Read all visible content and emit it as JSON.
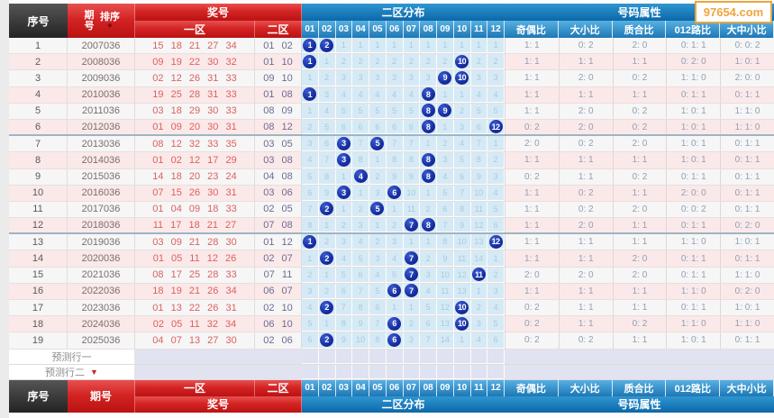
{
  "site_badge": "97654.com",
  "labels": {
    "serial": "序号",
    "period": "期号",
    "sort": "排序",
    "prize": "奖号",
    "zone1": "一区",
    "zone2": "二区",
    "dist": "二区分布",
    "attrs": "号码属性"
  },
  "icons": {
    "sort": "◆",
    "predict_arrow": "▼"
  },
  "prediction_rows": [
    {
      "label": "预测行一",
      "arrow": ""
    },
    {
      "label": "预测行二",
      "arrow": "▼"
    }
  ],
  "colors": {
    "accent_red": "#d42424",
    "accent_blue": "#1d77b5",
    "ball_blue": "#162da0",
    "pink_row": "#fbe9e9",
    "dist_bg": "#d5eaf5",
    "miss_text": "#a6cbe0",
    "badge_orange": "#f0a43c"
  },
  "chart_data": {
    "type": "table",
    "title": "二区分布 / 号码属性",
    "ball_columns": [
      "01",
      "02",
      "03",
      "04",
      "05",
      "06",
      "07",
      "08",
      "09",
      "10",
      "11",
      "12"
    ],
    "attr_columns": [
      "奇偶比",
      "大小比",
      "质合比",
      "012路比",
      "大中小比"
    ],
    "cell_legend": "B-prefixed entries are drawn balls; plain numbers are miss counts",
    "rows": [
      {
        "no": "1",
        "period": "2007036",
        "zone1": "15 18 21 27 34",
        "zone2": "01 02",
        "cells": [
          "B1",
          "B2",
          "1",
          "1",
          "1",
          "1",
          "1",
          "1",
          "1",
          "1",
          "1",
          "1"
        ],
        "attrs": [
          "1: 1",
          "0: 2",
          "2: 0",
          "0: 1: 1",
          "0: 0: 2"
        ]
      },
      {
        "no": "2",
        "period": "2008036",
        "zone1": "09 19 22 30 32",
        "zone2": "01 10",
        "cells": [
          "B1",
          "1",
          "2",
          "2",
          "2",
          "2",
          "2",
          "2",
          "2",
          "B10",
          "2",
          "2"
        ],
        "attrs": [
          "1: 1",
          "1: 1",
          "1: 1",
          "0: 2: 0",
          "1: 0: 1"
        ]
      },
      {
        "no": "3",
        "period": "2009036",
        "zone1": "02 12 26 31 33",
        "zone2": "09 10",
        "cells": [
          "1",
          "2",
          "3",
          "3",
          "3",
          "3",
          "3",
          "3",
          "B9",
          "B10",
          "3",
          "3"
        ],
        "attrs": [
          "1: 1",
          "2: 0",
          "0: 2",
          "1: 1: 0",
          "2: 0: 0"
        ]
      },
      {
        "no": "4",
        "period": "2010036",
        "zone1": "19 25 28 31 33",
        "zone2": "01 08",
        "cells": [
          "B1",
          "3",
          "4",
          "4",
          "4",
          "4",
          "4",
          "B8",
          "1",
          "1",
          "4",
          "4"
        ],
        "attrs": [
          "1: 1",
          "1: 1",
          "1: 1",
          "0: 1: 1",
          "0: 1: 1"
        ]
      },
      {
        "no": "5",
        "period": "2011036",
        "zone1": "03 18 29 30 33",
        "zone2": "08 09",
        "cells": [
          "1",
          "4",
          "5",
          "5",
          "5",
          "5",
          "5",
          "B8",
          "B9",
          "2",
          "5",
          "5"
        ],
        "attrs": [
          "1: 1",
          "2: 0",
          "0: 2",
          "1: 0: 1",
          "1: 1: 0"
        ]
      },
      {
        "no": "6",
        "period": "2012036",
        "zone1": "01 09 20 30 31",
        "zone2": "08 12",
        "cells": [
          "2",
          "5",
          "6",
          "6",
          "6",
          "6",
          "6",
          "B8",
          "1",
          "3",
          "6",
          "B12"
        ],
        "attrs": [
          "0: 2",
          "2: 0",
          "0: 2",
          "1: 0: 1",
          "1: 1: 0"
        ]
      },
      {
        "no": "7",
        "period": "2013036",
        "zone1": "08 12 32 33 35",
        "zone2": "03 05",
        "cells": [
          "3",
          "6",
          "B3",
          "7",
          "B5",
          "7",
          "7",
          "1",
          "2",
          "4",
          "7",
          "1"
        ],
        "attrs": [
          "2: 0",
          "0: 2",
          "2: 0",
          "1: 0: 1",
          "0: 1: 1"
        ]
      },
      {
        "no": "8",
        "period": "2014036",
        "zone1": "01 02 12 17 29",
        "zone2": "03 08",
        "cells": [
          "4",
          "7",
          "B3",
          "8",
          "1",
          "8",
          "8",
          "B8",
          "3",
          "5",
          "8",
          "2"
        ],
        "attrs": [
          "1: 1",
          "1: 1",
          "1: 1",
          "1: 0: 1",
          "0: 1: 1"
        ]
      },
      {
        "no": "9",
        "period": "2015036",
        "zone1": "14 18 20 23 24",
        "zone2": "04 08",
        "cells": [
          "5",
          "8",
          "1",
          "B4",
          "2",
          "9",
          "9",
          "B8",
          "4",
          "6",
          "9",
          "3"
        ],
        "attrs": [
          "0: 2",
          "1: 1",
          "0: 2",
          "0: 1: 1",
          "0: 1: 1"
        ]
      },
      {
        "no": "10",
        "period": "2016036",
        "zone1": "07 15 26 30 31",
        "zone2": "03 06",
        "cells": [
          "6",
          "9",
          "B3",
          "1",
          "3",
          "B6",
          "10",
          "1",
          "5",
          "7",
          "10",
          "4"
        ],
        "attrs": [
          "1: 1",
          "0: 2",
          "1: 1",
          "2: 0: 0",
          "0: 1: 1"
        ]
      },
      {
        "no": "11",
        "period": "2017036",
        "zone1": "01 04 09 18 33",
        "zone2": "02 05",
        "cells": [
          "7",
          "B2",
          "1",
          "2",
          "B5",
          "1",
          "11",
          "2",
          "6",
          "8",
          "11",
          "5"
        ],
        "attrs": [
          "1: 1",
          "0: 2",
          "2: 0",
          "0: 0: 2",
          "0: 1: 1"
        ]
      },
      {
        "no": "12",
        "period": "2018036",
        "zone1": "11 17 18 21 27",
        "zone2": "07 08",
        "cells": [
          "8",
          "1",
          "2",
          "3",
          "1",
          "2",
          "B7",
          "B8",
          "7",
          "9",
          "12",
          "6"
        ],
        "attrs": [
          "1: 1",
          "2: 0",
          "1: 1",
          "0: 1: 1",
          "0: 2: 0"
        ]
      },
      {
        "no": "13",
        "period": "2019036",
        "zone1": "03 09 21 28 30",
        "zone2": "01 12",
        "cells": [
          "B1",
          "2",
          "3",
          "4",
          "2",
          "3",
          "1",
          "1",
          "8",
          "10",
          "13",
          "B12"
        ],
        "attrs": [
          "1: 1",
          "1: 1",
          "1: 1",
          "1: 1: 0",
          "1: 0: 1"
        ]
      },
      {
        "no": "14",
        "period": "2020036",
        "zone1": "01 05 11 12 26",
        "zone2": "02 07",
        "cells": [
          "1",
          "B2",
          "4",
          "5",
          "3",
          "4",
          "B7",
          "2",
          "9",
          "11",
          "14",
          "1"
        ],
        "attrs": [
          "1: 1",
          "1: 1",
          "2: 0",
          "0: 1: 1",
          "0: 1: 1"
        ]
      },
      {
        "no": "15",
        "period": "2021036",
        "zone1": "08 17 25 28 33",
        "zone2": "07 11",
        "cells": [
          "2",
          "1",
          "5",
          "6",
          "4",
          "5",
          "B7",
          "3",
          "10",
          "12",
          "B11",
          "2"
        ],
        "attrs": [
          "2: 0",
          "2: 0",
          "2: 0",
          "0: 1: 1",
          "1: 1: 0"
        ]
      },
      {
        "no": "16",
        "period": "2022036",
        "zone1": "18 19 21 26 34",
        "zone2": "06 07",
        "cells": [
          "3",
          "2",
          "6",
          "7",
          "5",
          "B6",
          "B7",
          "4",
          "11",
          "13",
          "1",
          "3"
        ],
        "attrs": [
          "1: 1",
          "1: 1",
          "1: 1",
          "1: 1: 0",
          "0: 2: 0"
        ]
      },
      {
        "no": "17",
        "period": "2023036",
        "zone1": "01 13 22 26 31",
        "zone2": "02 10",
        "cells": [
          "4",
          "B2",
          "7",
          "8",
          "6",
          "1",
          "1",
          "5",
          "12",
          "B10",
          "2",
          "4"
        ],
        "attrs": [
          "0: 2",
          "1: 1",
          "1: 1",
          "0: 1: 1",
          "1: 0: 1"
        ]
      },
      {
        "no": "18",
        "period": "2024036",
        "zone1": "02 05 11 32 34",
        "zone2": "06 10",
        "cells": [
          "5",
          "1",
          "8",
          "9",
          "7",
          "B6",
          "2",
          "6",
          "13",
          "B10",
          "3",
          "5"
        ],
        "attrs": [
          "0: 2",
          "1: 1",
          "0: 2",
          "1: 1: 0",
          "1: 1: 0"
        ]
      },
      {
        "no": "19",
        "period": "2025036",
        "zone1": "04 07 13 27 30",
        "zone2": "02 06",
        "cells": [
          "6",
          "B2",
          "9",
          "10",
          "8",
          "B6",
          "3",
          "7",
          "14",
          "1",
          "4",
          "6"
        ],
        "attrs": [
          "0: 2",
          "0: 2",
          "1: 1",
          "1: 0: 1",
          "0: 1: 1"
        ]
      }
    ]
  }
}
